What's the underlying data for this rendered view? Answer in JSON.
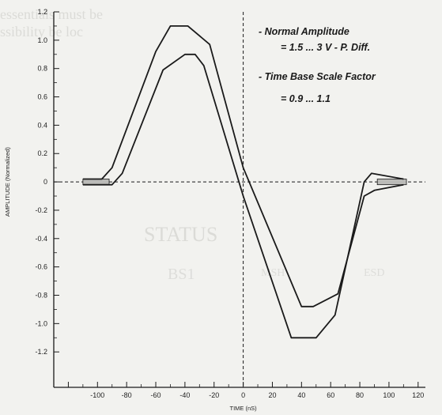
{
  "chart_data": {
    "type": "line",
    "xlabel": "TIME (nS)",
    "ylabel": "AMPLITUDE (Normalized)",
    "xlim": [
      -130,
      125
    ],
    "ylim": [
      -1.45,
      1.2
    ],
    "x_ticks": [
      -100,
      -80,
      -60,
      -40,
      -20,
      0,
      20,
      40,
      60,
      80,
      100,
      120
    ],
    "x_tick_labels": [
      "-100",
      "-80",
      "-60",
      "-40",
      "-20",
      "0",
      "20",
      "40",
      "60",
      "80",
      "100",
      "120"
    ],
    "y_ticks": [
      1.2,
      1.0,
      0.8,
      0.6,
      0.4,
      0.2,
      0,
      -0.2,
      -0.4,
      -0.6,
      -0.8,
      -1.0,
      -1.2
    ],
    "y_tick_labels": [
      "1.2",
      "1.0",
      "0.8",
      "0.6",
      "0.4",
      "0.2",
      "0",
      "-0.2",
      "-0.4",
      "-0.6",
      "-0.8",
      "-1.0",
      "-1.2"
    ],
    "grid": false,
    "series": [
      {
        "x": [
          -110,
          -97,
          -90,
          -60,
          -50,
          -38,
          -23,
          0,
          40,
          48,
          65,
          83,
          90,
          110
        ],
        "y": [
          0.02,
          0.02,
          0.1,
          0.92,
          1.1,
          1.1,
          0.97,
          0.1,
          -0.88,
          -0.88,
          -0.79,
          -0.1,
          -0.06,
          -0.02
        ],
        "color": "#1a1a1a"
      },
      {
        "x": [
          -110,
          -90,
          -83,
          -55,
          -40,
          -33,
          -27,
          0,
          33,
          50,
          63,
          83,
          88,
          110
        ],
        "y": [
          -0.02,
          -0.02,
          0.06,
          0.79,
          0.9,
          0.9,
          0.82,
          -0.1,
          -1.1,
          -1.1,
          -0.94,
          0.0,
          0.06,
          0.02
        ],
        "color": "#1a1a1a"
      }
    ],
    "annotations": [
      "- Normal  Amplitude",
      "= 1.5 ... 3 V - P. Diff.",
      "- Time Base Scale Factor",
      "= 0.9 ... 1.1"
    ]
  },
  "background_text": [
    "essentials must be",
    "ssibility be loc",
    "STATUS",
    "BS1",
    "MSH",
    "ESD"
  ]
}
